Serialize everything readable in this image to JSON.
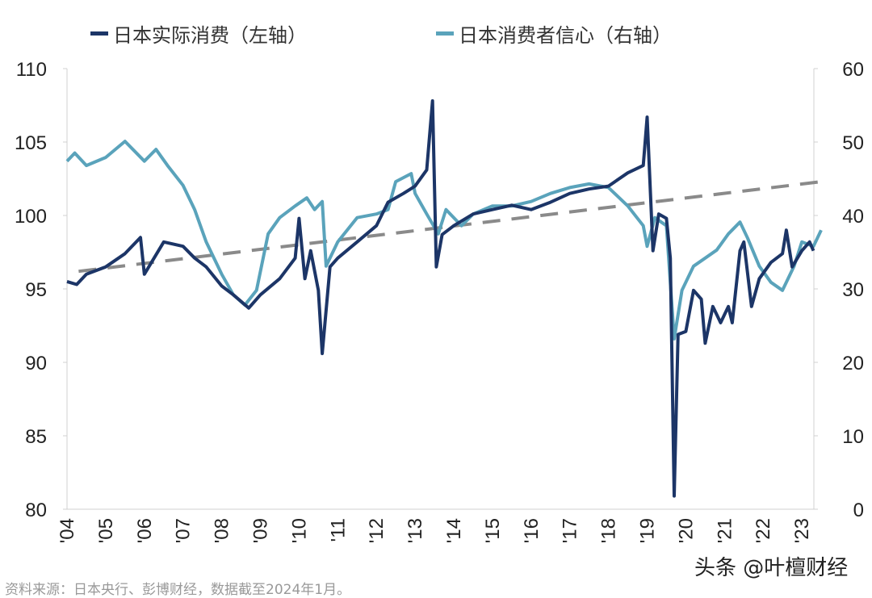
{
  "chart_data": {
    "type": "line",
    "title": "",
    "xlabel": "",
    "ylabel": "",
    "x_tick_labels": [
      "'04",
      "'05",
      "'06",
      "'07",
      "'08",
      "'09",
      "'10",
      "'11",
      "'12",
      "'13",
      "'14",
      "'15",
      "'16",
      "'17",
      "'18",
      "'19",
      "'20",
      "'21",
      "'22",
      "'23"
    ],
    "y_left": {
      "lim": [
        80,
        110
      ],
      "ticks": [
        "80",
        "85",
        "90",
        "95",
        "100",
        "105",
        "110"
      ]
    },
    "y_right": {
      "lim": [
        0,
        60
      ],
      "ticks": [
        "0",
        "10",
        "20",
        "30",
        "40",
        "50",
        "60"
      ]
    },
    "grid": false,
    "legend_position": "top",
    "series": [
      {
        "name": "日本实际消费（左轴）",
        "axis": "left",
        "color": "#1c3567",
        "x": [
          2004.0,
          2004.25,
          2004.5,
          2005.0,
          2005.5,
          2005.9,
          2006.0,
          2006.25,
          2006.5,
          2007.0,
          2007.3,
          2007.6,
          2008.0,
          2008.3,
          2008.7,
          2009.0,
          2009.5,
          2009.9,
          2010.0,
          2010.15,
          2010.3,
          2010.5,
          2010.6,
          2010.8,
          2011.0,
          2011.5,
          2012.0,
          2012.3,
          2012.7,
          2013.0,
          2013.3,
          2013.45,
          2013.55,
          2013.7,
          2014.0,
          2014.5,
          2015.0,
          2015.5,
          2016.0,
          2016.5,
          2017.0,
          2017.5,
          2018.0,
          2018.5,
          2018.9,
          2019.0,
          2019.15,
          2019.3,
          2019.5,
          2019.6,
          2019.7,
          2019.8,
          2020.0,
          2020.2,
          2020.4,
          2020.5,
          2020.7,
          2020.9,
          2021.1,
          2021.2,
          2021.4,
          2021.5,
          2021.7,
          2021.9,
          2022.2,
          2022.5,
          2022.6,
          2022.75,
          2023.0,
          2023.2,
          2023.3
        ],
        "values": [
          95.5,
          95.3,
          96.0,
          96.5,
          97.4,
          98.5,
          96.0,
          97.1,
          98.2,
          97.9,
          97.1,
          96.5,
          95.2,
          94.6,
          93.7,
          94.6,
          95.7,
          97.1,
          99.8,
          95.7,
          97.6,
          94.9,
          90.6,
          96.5,
          97.1,
          98.2,
          99.3,
          100.9,
          101.5,
          102.0,
          103.1,
          107.8,
          96.5,
          98.7,
          99.3,
          100.1,
          100.4,
          100.7,
          100.4,
          100.9,
          101.5,
          101.8,
          102.0,
          102.9,
          103.4,
          106.7,
          97.6,
          100.1,
          99.8,
          97.1,
          80.9,
          91.9,
          92.1,
          94.9,
          94.3,
          91.3,
          93.8,
          92.7,
          93.8,
          92.7,
          97.6,
          98.2,
          93.8,
          95.7,
          96.8,
          97.4,
          99.0,
          96.5,
          97.6,
          98.2,
          97.6
        ]
      },
      {
        "name": "日本消费者信心（右轴）",
        "axis": "right",
        "color": "#5aa3bb",
        "x": [
          2004.0,
          2004.2,
          2004.5,
          2005.0,
          2005.5,
          2006.0,
          2006.3,
          2006.6,
          2007.0,
          2007.3,
          2007.6,
          2008.0,
          2008.3,
          2008.6,
          2008.9,
          2009.2,
          2009.5,
          2009.9,
          2010.2,
          2010.4,
          2010.6,
          2010.7,
          2011.0,
          2011.5,
          2012.0,
          2012.3,
          2012.5,
          2012.9,
          2013.0,
          2013.3,
          2013.6,
          2013.8,
          2014.2,
          2014.5,
          2015.0,
          2015.5,
          2016.0,
          2016.5,
          2017.0,
          2017.5,
          2018.0,
          2018.5,
          2018.9,
          2019.0,
          2019.2,
          2019.5,
          2019.7,
          2019.9,
          2020.2,
          2020.5,
          2020.8,
          2021.1,
          2021.4,
          2021.6,
          2021.9,
          2022.2,
          2022.5,
          2022.8,
          2023.0,
          2023.3,
          2023.5
        ],
        "values": [
          47.4,
          48.5,
          46.8,
          47.9,
          50.1,
          47.4,
          49.0,
          46.8,
          44.1,
          40.8,
          36.4,
          32.0,
          29.2,
          27.8,
          29.8,
          37.5,
          39.7,
          41.3,
          42.4,
          40.8,
          41.9,
          33.1,
          36.4,
          39.7,
          40.2,
          40.8,
          44.6,
          45.7,
          43.0,
          40.2,
          37.5,
          40.8,
          38.6,
          40.2,
          41.3,
          41.3,
          41.9,
          43.0,
          43.8,
          44.3,
          43.8,
          41.3,
          38.6,
          35.8,
          39.7,
          38.6,
          23.2,
          29.8,
          33.1,
          34.2,
          35.3,
          37.5,
          39.1,
          36.9,
          33.1,
          30.9,
          29.8,
          33.1,
          36.4,
          35.8,
          38.0
        ]
      },
      {
        "axis": "left",
        "style": "dashed",
        "color": "#8a8a8a",
        "x": [
          2004.3,
          2023.5
        ],
        "values": [
          96.2,
          102.3
        ]
      }
    ]
  },
  "legend": [
    "日本实际消费（左轴）",
    "日本消费者信心（右轴）"
  ],
  "source": "资料来源：日本央行、彭博财经，数据截至2024年1月。",
  "watermark": "头条 @叶檀财经"
}
